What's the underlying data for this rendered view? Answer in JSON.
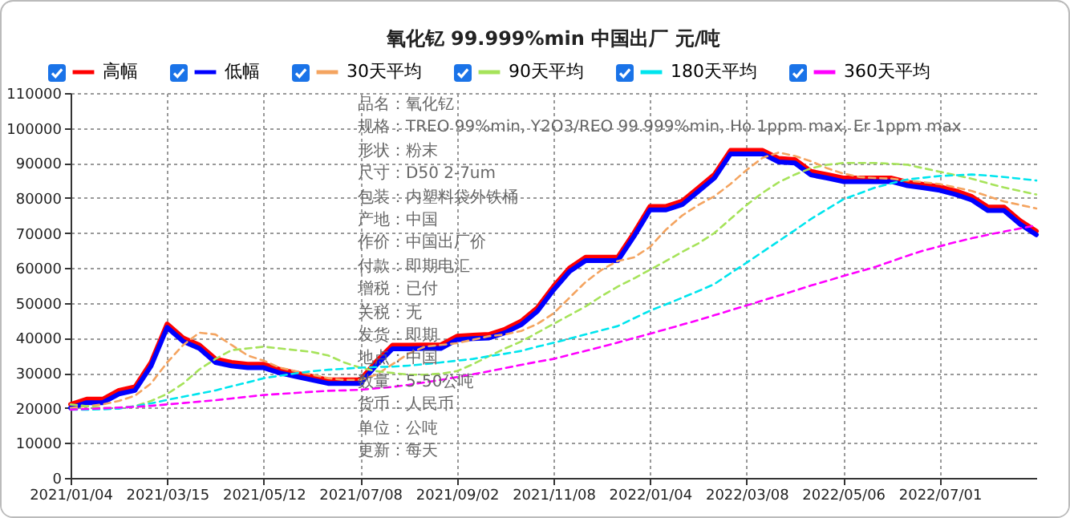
{
  "chart_data": {
    "type": "line",
    "title": "氧化钇 99.999%min 中国出厂 元/吨",
    "categories": [
      "2021/01/04",
      null,
      null,
      null,
      null,
      null,
      "2021/03/15",
      null,
      null,
      null,
      null,
      null,
      "2021/05/12",
      null,
      null,
      null,
      null,
      null,
      "2021/07/08",
      null,
      null,
      null,
      null,
      null,
      "2021/09/02",
      null,
      null,
      null,
      null,
      null,
      "2021/11/08",
      null,
      null,
      null,
      null,
      null,
      "2022/01/04",
      null,
      null,
      null,
      null,
      null,
      "2022/03/08",
      null,
      null,
      null,
      null,
      null,
      "2022/05/06",
      null,
      null,
      null,
      null,
      null,
      "2022/07/01",
      null,
      null,
      null,
      null,
      null,
      null
    ],
    "series": [
      {
        "name": "高幅",
        "color": "#ff0000",
        "line_style": "solid",
        "values": [
          21000,
          22500,
          22500,
          25000,
          26000,
          33000,
          44000,
          40000,
          38000,
          34000,
          33000,
          32500,
          32500,
          31000,
          30000,
          29000,
          28000,
          28000,
          28000,
          33300,
          37900,
          37900,
          38000,
          38000,
          40500,
          40800,
          41000,
          42500,
          44800,
          48600,
          54700,
          60000,
          63100,
          63100,
          63100,
          70000,
          77600,
          77600,
          79100,
          82900,
          86700,
          93600,
          93600,
          93600,
          91300,
          91000,
          87600,
          86700,
          85700,
          85700,
          85700,
          85700,
          84500,
          83900,
          83200,
          82000,
          80400,
          77400,
          77400,
          73500,
          70500
        ]
      },
      {
        "name": "低幅",
        "color": "#0000ff",
        "line_style": "solid",
        "values": [
          20000,
          21500,
          21500,
          24000,
          25000,
          32000,
          43000,
          39000,
          37000,
          33000,
          32000,
          31500,
          31500,
          30000,
          29000,
          28000,
          27000,
          27000,
          27000,
          32300,
          36900,
          36900,
          37000,
          37000,
          39500,
          39800,
          40000,
          41500,
          43800,
          47600,
          53700,
          59000,
          62100,
          62100,
          62100,
          69000,
          76600,
          76600,
          78100,
          81900,
          85700,
          92600,
          92600,
          92600,
          90300,
          90000,
          86600,
          85700,
          84700,
          84700,
          84700,
          84700,
          83500,
          82900,
          82200,
          81000,
          79400,
          76400,
          76400,
          72500,
          69500
        ]
      },
      {
        "name": "30天平均",
        "color": "#f4a460",
        "line_style": "dashed",
        "values": [
          20000,
          20500,
          21000,
          22000,
          23500,
          27000,
          33000,
          38000,
          41500,
          41000,
          38000,
          35000,
          33500,
          31500,
          30500,
          29500,
          28500,
          28000,
          28000,
          29500,
          32500,
          35500,
          37500,
          38000,
          38500,
          39500,
          40500,
          41000,
          42000,
          44000,
          47000,
          51500,
          56000,
          59500,
          62000,
          63000,
          66000,
          71000,
          75000,
          78000,
          80500,
          84000,
          88000,
          91500,
          93000,
          92000,
          90500,
          88500,
          87000,
          86000,
          85700,
          85500,
          85000,
          84500,
          84000,
          83000,
          82000,
          80500,
          79000,
          78000,
          77000
        ]
      },
      {
        "name": "90天平均",
        "color": "#a6e35a",
        "line_style": "dashed",
        "values": [
          21000,
          20500,
          20000,
          20000,
          20500,
          22000,
          24000,
          27000,
          31000,
          34000,
          36500,
          37000,
          37500,
          37000,
          36500,
          36000,
          35000,
          33000,
          31500,
          30500,
          30000,
          29500,
          29500,
          29800,
          30500,
          32500,
          34800,
          37000,
          39000,
          41500,
          44000,
          46500,
          49000,
          52000,
          54700,
          57000,
          59500,
          62000,
          64600,
          67000,
          70000,
          74000,
          78000,
          81500,
          84500,
          86700,
          88500,
          89500,
          90000,
          90000,
          90000,
          89800,
          89500,
          88500,
          87500,
          86500,
          85500,
          84200,
          83000,
          82000,
          81000
        ]
      },
      {
        "name": "180天平均",
        "color": "#00e5ee",
        "line_style": "dashed",
        "values": [
          19500,
          19500,
          19600,
          19800,
          20500,
          21300,
          22300,
          23200,
          24100,
          25000,
          26200,
          27300,
          28500,
          29200,
          29900,
          30500,
          30900,
          31200,
          31500,
          31700,
          31800,
          32100,
          32500,
          33000,
          33500,
          34000,
          34800,
          35500,
          36300,
          37500,
          38600,
          39800,
          41000,
          42200,
          43400,
          45600,
          47800,
          49600,
          51500,
          53400,
          55400,
          58500,
          61500,
          64600,
          67700,
          70800,
          74000,
          76800,
          79600,
          81300,
          83000,
          84200,
          85300,
          85800,
          86300,
          86500,
          86700,
          86400,
          86000,
          85500,
          85000
        ]
      },
      {
        "name": "360天平均",
        "color": "#ff00ff",
        "line_style": "dashed",
        "values": [
          19500,
          19700,
          19900,
          20100,
          20300,
          20600,
          21000,
          21400,
          21800,
          22200,
          22700,
          23200,
          23700,
          24000,
          24300,
          24600,
          24900,
          25000,
          25200,
          25600,
          26000,
          26600,
          27300,
          28000,
          28800,
          29600,
          30500,
          31400,
          32300,
          33200,
          34000,
          35200,
          36300,
          37500,
          38700,
          40000,
          41200,
          42500,
          43800,
          45100,
          46500,
          47900,
          49300,
          50700,
          52100,
          53500,
          55000,
          56300,
          57700,
          59000,
          60300,
          61900,
          63500,
          65000,
          66200,
          67400,
          68500,
          69500,
          70400,
          71300,
          72200
        ]
      }
    ],
    "ylim": [
      0,
      110000
    ],
    "yticks": [
      0,
      10000,
      20000,
      30000,
      40000,
      50000,
      60000,
      70000,
      80000,
      90000,
      100000,
      110000
    ],
    "grid": true,
    "legend": "top",
    "annotations": [
      "品名：氧化钇",
      "规格：TREO 99%min, Y2O3/REO 99.999%min, Ho 1ppm max, Er 1ppm max",
      "形状：粉末",
      "尺寸：D50 2-7um",
      "包装：内塑料袋外铁桶",
      "产地：中国",
      "作价：中国出厂价",
      "付款：即期电汇",
      "增税：已付",
      "关税：无",
      "发货：即期",
      "地点：中国",
      "数量：5-50公吨",
      "货币：人民币",
      "单位：公吨",
      "更新：每天"
    ]
  }
}
